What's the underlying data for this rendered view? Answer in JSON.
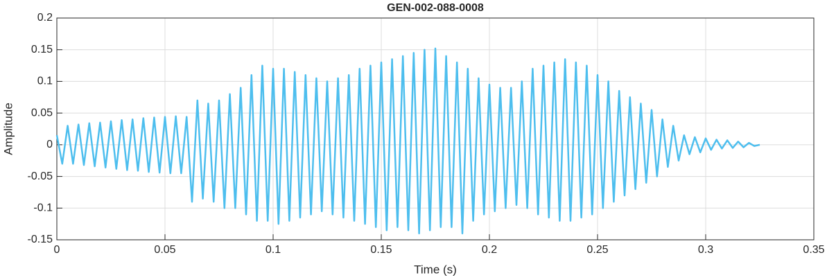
{
  "chart_data": {
    "type": "line",
    "title": "GEN-002-088-0008",
    "x_label": "Time (s)",
    "y_label": "Amplitude",
    "color": "#4DBEEE",
    "grid": true,
    "xlim": [
      0,
      0.35
    ],
    "xticks": [
      0,
      0.05,
      0.1,
      0.15,
      0.2,
      0.25,
      0.3,
      0.35
    ],
    "ylim": [
      -0.15,
      0.2
    ],
    "yticks": [
      -0.15,
      -0.1,
      -0.05,
      0,
      0.05,
      0.1,
      0.15,
      0.2
    ],
    "x": [
      0,
      0.0025,
      0.005,
      0.0075,
      0.01,
      0.0125,
      0.015,
      0.0175,
      0.02,
      0.0225,
      0.025,
      0.0275,
      0.03,
      0.0325,
      0.035,
      0.0375,
      0.04,
      0.0425,
      0.045,
      0.0475,
      0.05,
      0.0525,
      0.055,
      0.0575,
      0.06,
      0.0625,
      0.065,
      0.0675,
      0.07,
      0.0725,
      0.075,
      0.0775,
      0.08,
      0.0825,
      0.085,
      0.0875,
      0.09,
      0.0925,
      0.095,
      0.0975,
      0.1,
      0.1025,
      0.105,
      0.1075,
      0.11,
      0.1125,
      0.115,
      0.1175,
      0.12,
      0.1225,
      0.125,
      0.1275,
      0.13,
      0.1325,
      0.135,
      0.1375,
      0.14,
      0.1425,
      0.145,
      0.1475,
      0.15,
      0.1525,
      0.155,
      0.1575,
      0.16,
      0.1625,
      0.165,
      0.1675,
      0.17,
      0.1725,
      0.175,
      0.1775,
      0.18,
      0.1825,
      0.185,
      0.1875,
      0.19,
      0.1925,
      0.195,
      0.1975,
      0.2,
      0.2025,
      0.205,
      0.2075,
      0.21,
      0.2125,
      0.215,
      0.2175,
      0.22,
      0.2225,
      0.225,
      0.2275,
      0.23,
      0.2325,
      0.235,
      0.2375,
      0.24,
      0.2425,
      0.245,
      0.2475,
      0.25,
      0.2525,
      0.255,
      0.2575,
      0.26,
      0.2625,
      0.265,
      0.2675,
      0.27,
      0.2725,
      0.275,
      0.2775,
      0.28,
      0.2825,
      0.285,
      0.2875,
      0.29,
      0.2925,
      0.295,
      0.2975,
      0.3,
      0.3025,
      0.305,
      0.3075,
      0.31,
      0.3125,
      0.315,
      0.3175,
      0.32,
      0.3225,
      0.325
    ],
    "values": [
      0.015,
      -0.03,
      0.03,
      -0.03,
      0.032,
      -0.032,
      0.034,
      -0.034,
      0.035,
      -0.036,
      0.037,
      -0.038,
      0.039,
      -0.04,
      0.04,
      -0.041,
      0.042,
      -0.043,
      0.043,
      -0.044,
      0.044,
      -0.045,
      0.045,
      -0.045,
      0.044,
      -0.09,
      0.07,
      -0.085,
      0.065,
      -0.09,
      0.07,
      -0.1,
      0.08,
      -0.1,
      0.09,
      -0.11,
      0.11,
      -0.12,
      0.125,
      -0.12,
      0.12,
      -0.125,
      0.12,
      -0.12,
      0.115,
      -0.115,
      0.11,
      -0.11,
      0.105,
      -0.105,
      0.1,
      -0.11,
      0.105,
      -0.115,
      0.11,
      -0.12,
      0.12,
      -0.125,
      0.125,
      -0.13,
      0.13,
      -0.135,
      0.135,
      -0.13,
      0.14,
      -0.135,
      0.145,
      -0.14,
      0.15,
      -0.135,
      0.152,
      -0.13,
      0.14,
      -0.13,
      0.13,
      -0.14,
      0.12,
      -0.12,
      0.105,
      -0.11,
      0.095,
      -0.105,
      0.09,
      -0.1,
      0.09,
      -0.095,
      0.1,
      -0.1,
      0.12,
      -0.11,
      0.125,
      -0.115,
      0.13,
      -0.12,
      0.135,
      -0.12,
      0.13,
      -0.115,
      0.125,
      -0.11,
      0.11,
      -0.1,
      0.1,
      -0.09,
      0.085,
      -0.08,
      0.075,
      -0.07,
      0.065,
      -0.06,
      0.055,
      -0.05,
      0.04,
      -0.035,
      0.03,
      -0.025,
      0.015,
      -0.015,
      0.012,
      -0.012,
      0.01,
      -0.008,
      0.008,
      -0.006,
      0.007,
      -0.005,
      0.005,
      -0.004,
      0.003,
      -0.002,
      0
    ]
  }
}
